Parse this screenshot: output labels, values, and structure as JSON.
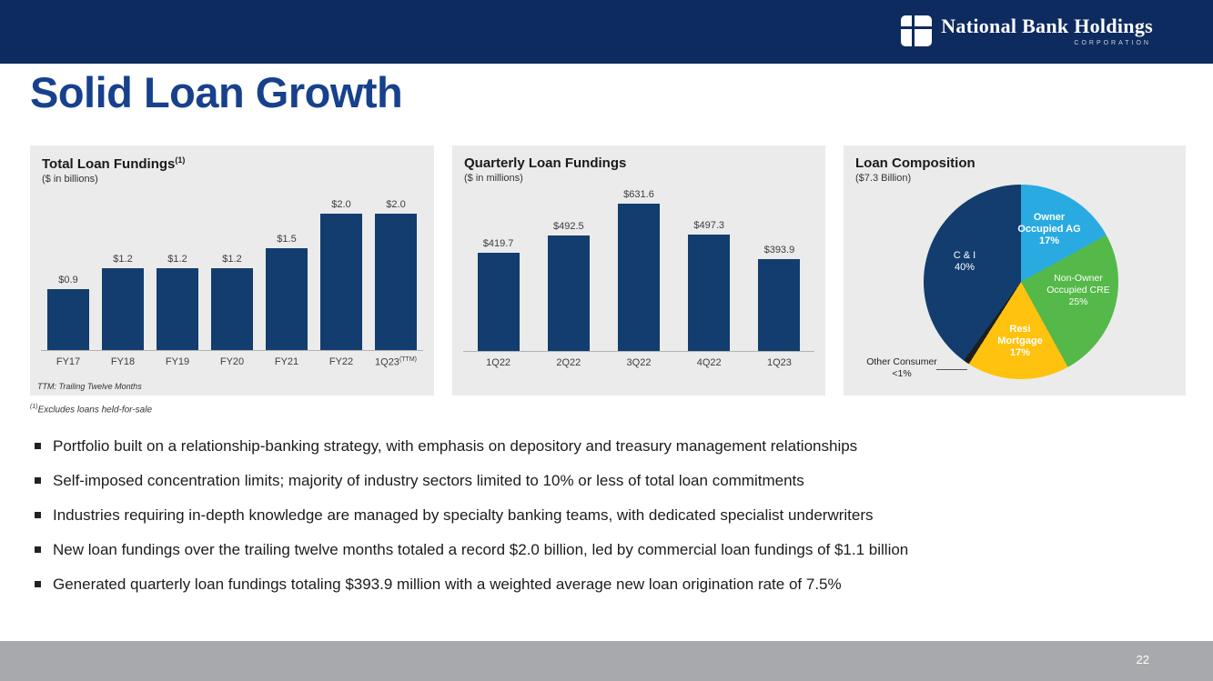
{
  "header": {
    "brand_name": "National Bank Holdings",
    "brand_sub": "CORPORATION"
  },
  "title": "Solid Loan Growth",
  "chart_data": [
    {
      "type": "bar",
      "title": "Total Loan Fundings",
      "title_sup": "(1)",
      "subtitle": "($ in billions)",
      "categories": [
        "FY17",
        "FY18",
        "FY19",
        "FY20",
        "FY21",
        "FY22",
        "1Q23"
      ],
      "category_sups": [
        "",
        "",
        "",
        "",
        "",
        "",
        "(TTM)"
      ],
      "values": [
        0.9,
        1.2,
        1.2,
        1.2,
        1.5,
        2.0,
        2.0
      ],
      "value_labels": [
        "$0.9",
        "$1.2",
        "$1.2",
        "$1.2",
        "$1.5",
        "$2.0",
        "$2.0"
      ],
      "ylim": [
        0,
        2.2
      ],
      "bar_color": "#123d6e",
      "footnote": "TTM: Trailing Twelve Months"
    },
    {
      "type": "bar",
      "title": "Quarterly Loan Fundings",
      "subtitle": "($ in millions)",
      "categories": [
        "1Q22",
        "2Q22",
        "3Q22",
        "4Q22",
        "1Q23"
      ],
      "category_sups": [
        "",
        "",
        "",
        "",
        ""
      ],
      "values": [
        419.7,
        492.5,
        631.6,
        497.3,
        393.9
      ],
      "value_labels": [
        "$419.7",
        "$492.5",
        "$631.6",
        "$497.3",
        "$393.9"
      ],
      "ylim": [
        0,
        700
      ],
      "bar_color": "#123d6e"
    },
    {
      "type": "pie",
      "title": "Loan Composition",
      "subtitle": "($7.3 Billion)",
      "slices": [
        {
          "label": "Owner Occupied AG",
          "pct": "17%",
          "value": 17,
          "color": "#29abe2"
        },
        {
          "label": "Non-Owner Occupied CRE",
          "pct": "25%",
          "value": 25,
          "color": "#54b948"
        },
        {
          "label": "Resi Mortgage",
          "pct": "17%",
          "value": 17,
          "color": "#ffc20e"
        },
        {
          "label": "Other Consumer",
          "pct": "<1%",
          "value": 1,
          "color": "#1e1e1e"
        },
        {
          "label": "C & I",
          "pct": "40%",
          "value": 40,
          "color": "#123d6e"
        }
      ]
    }
  ],
  "footnotes": {
    "slide_sup": "(1)",
    "slide_text": "Excludes loans held-for-sale"
  },
  "bullets": [
    "Portfolio built on a relationship-banking strategy, with emphasis on depository and treasury management relationships",
    "Self-imposed concentration limits; majority of industry sectors limited to 10% or less of total loan commitments",
    "Industries requiring in-depth knowledge are managed by specialty banking teams, with dedicated specialist underwriters",
    "New loan fundings over the trailing twelve months totaled a record $2.0 billion, led by commercial loan fundings of $1.1 billion",
    "Generated quarterly loan fundings totaling $393.9 million with a weighted average new loan origination rate of 7.5%"
  ],
  "footer": {
    "page_number": "22"
  }
}
